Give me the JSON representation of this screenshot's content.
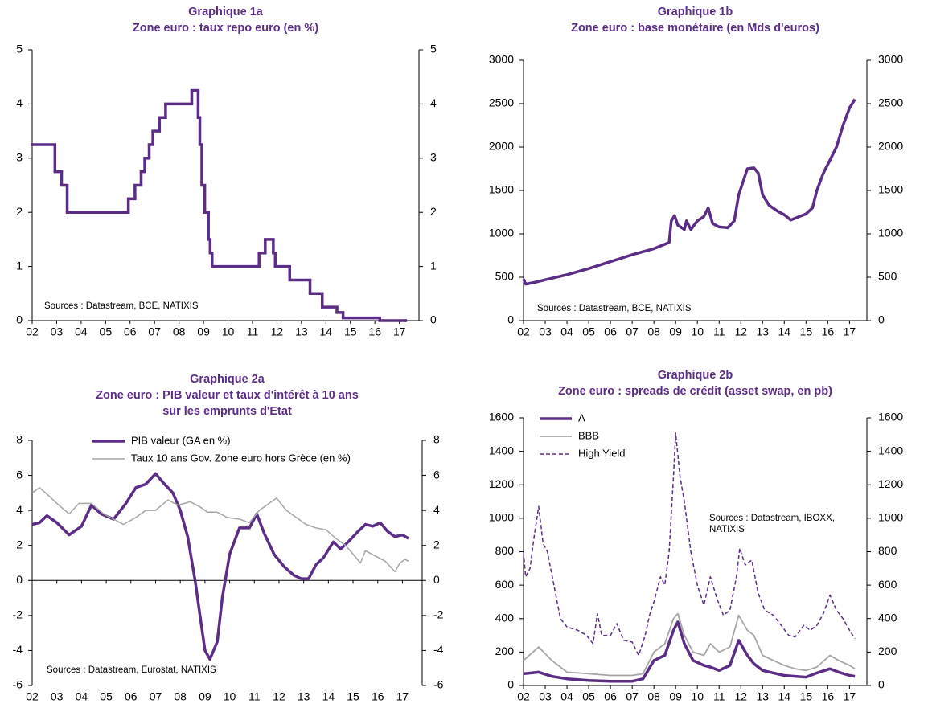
{
  "chart_data": [
    {
      "type": "line",
      "step": true,
      "title": "Graphique 1a",
      "subtitle": [
        "Zone euro : taux repo euro (en %)"
      ],
      "annotation": [
        "Sources : Datastream, BCE, NATIXIS"
      ],
      "color": "#5c2d86",
      "line_width": 3.5,
      "x": [
        2002.0,
        2002.93,
        2003.2,
        2003.43,
        2005.93,
        2006.2,
        2006.45,
        2006.6,
        2006.78,
        2006.93,
        2007.2,
        2007.45,
        2008.52,
        2008.78,
        2008.85,
        2008.93,
        2009.05,
        2009.2,
        2009.27,
        2009.35,
        2011.27,
        2011.52,
        2011.85,
        2011.93,
        2012.52,
        2013.35,
        2013.85,
        2014.45,
        2014.7,
        2016.2,
        2017.25
      ],
      "values": [
        3.25,
        2.75,
        2.5,
        2.0,
        2.25,
        2.5,
        2.75,
        3.0,
        3.25,
        3.5,
        3.75,
        4.0,
        4.25,
        3.75,
        3.25,
        2.5,
        2.0,
        1.5,
        1.25,
        1.0,
        1.25,
        1.5,
        1.25,
        1.0,
        0.75,
        0.5,
        0.25,
        0.15,
        0.05,
        0,
        0
      ],
      "xlim": [
        2002,
        2017.8
      ],
      "xticks": [
        {
          "value": 2002,
          "label": "02"
        },
        {
          "value": 2003,
          "label": "03"
        },
        {
          "value": 2004,
          "label": "04"
        },
        {
          "value": 2005,
          "label": "05"
        },
        {
          "value": 2006,
          "label": "06"
        },
        {
          "value": 2007,
          "label": "07"
        },
        {
          "value": 2008,
          "label": "08"
        },
        {
          "value": 2009,
          "label": "09"
        },
        {
          "value": 2010,
          "label": "10"
        },
        {
          "value": 2011,
          "label": "11"
        },
        {
          "value": 2012,
          "label": "12"
        },
        {
          "value": 2013,
          "label": "13"
        },
        {
          "value": 2014,
          "label": "14"
        },
        {
          "value": 2015,
          "label": "15"
        },
        {
          "value": 2016,
          "label": "16"
        },
        {
          "value": 2017,
          "label": "17"
        }
      ],
      "ylim": [
        0,
        5
      ],
      "yticks": [
        0,
        1,
        2,
        3,
        4,
        5
      ]
    },
    {
      "type": "line",
      "title": "Graphique 1b",
      "subtitle": [
        "Zone euro : base monétaire (en Mds d'euros)"
      ],
      "annotation": [
        "Sources : Datastream, BCE,  NATIXIS"
      ],
      "color": "#5c2d86",
      "line_width": 3.5,
      "x": [
        2002.0,
        2002.1,
        2002.5,
        2003.0,
        2004.0,
        2005.0,
        2006.0,
        2007.0,
        2008.0,
        2008.7,
        2008.8,
        2008.95,
        2009.1,
        2009.4,
        2009.5,
        2009.7,
        2010.0,
        2010.3,
        2010.5,
        2010.7,
        2011.0,
        2011.4,
        2011.7,
        2011.9,
        2012.1,
        2012.3,
        2012.6,
        2012.8,
        2013.0,
        2013.3,
        2013.7,
        2014.0,
        2014.3,
        2014.7,
        2015.0,
        2015.3,
        2015.5,
        2015.8,
        2016.1,
        2016.4,
        2016.7,
        2017.0,
        2017.25
      ],
      "values": [
        480,
        420,
        440,
        470,
        530,
        600,
        680,
        760,
        830,
        900,
        1150,
        1210,
        1100,
        1050,
        1150,
        1050,
        1150,
        1200,
        1300,
        1120,
        1080,
        1070,
        1150,
        1450,
        1600,
        1750,
        1760,
        1700,
        1450,
        1330,
        1260,
        1220,
        1160,
        1200,
        1230,
        1300,
        1500,
        1700,
        1850,
        2000,
        2250,
        2450,
        2550
      ],
      "xlim": [
        2002,
        2017.8
      ],
      "xticks": [
        {
          "value": 2002,
          "label": "02"
        },
        {
          "value": 2003,
          "label": "03"
        },
        {
          "value": 2004,
          "label": "04"
        },
        {
          "value": 2005,
          "label": "05"
        },
        {
          "value": 2006,
          "label": "06"
        },
        {
          "value": 2007,
          "label": "07"
        },
        {
          "value": 2008,
          "label": "08"
        },
        {
          "value": 2009,
          "label": "09"
        },
        {
          "value": 2010,
          "label": "10"
        },
        {
          "value": 2011,
          "label": "11"
        },
        {
          "value": 2012,
          "label": "12"
        },
        {
          "value": 2013,
          "label": "13"
        },
        {
          "value": 2014,
          "label": "14"
        },
        {
          "value": 2015,
          "label": "15"
        },
        {
          "value": 2016,
          "label": "16"
        },
        {
          "value": 2017,
          "label": "17"
        }
      ],
      "ylim": [
        0,
        3000
      ],
      "yticks": [
        0,
        500,
        1000,
        1500,
        2000,
        2500,
        3000
      ]
    },
    {
      "type": "line",
      "title": "Graphique 2a",
      "subtitle": [
        "Zone euro : PIB valeur et taux d'intérêt à 10 ans",
        "sur les emprunts d'Etat"
      ],
      "annotation": [
        "Sources : Datastream, Eurostat, NATIXIS"
      ],
      "legend": "upper center",
      "zero_line": true,
      "series": [
        {
          "name": "PIB valeur (GA en %)",
          "color": "#5c2d86",
          "line_width": 3.5,
          "x": [
            2002.0,
            2002.3,
            2002.6,
            2003.0,
            2003.5,
            2004.0,
            2004.4,
            2004.8,
            2005.3,
            2005.8,
            2006.2,
            2006.6,
            2007.0,
            2007.3,
            2007.7,
            2008.0,
            2008.3,
            2008.6,
            2008.8,
            2009.0,
            2009.2,
            2009.5,
            2009.7,
            2010.0,
            2010.4,
            2010.8,
            2011.1,
            2011.4,
            2011.8,
            2012.2,
            2012.6,
            2012.9,
            2013.2,
            2013.5,
            2013.8,
            2014.2,
            2014.5,
            2014.8,
            2015.2,
            2015.5,
            2015.8,
            2016.1,
            2016.4,
            2016.7,
            2017.0,
            2017.25
          ],
          "values": [
            3.2,
            3.3,
            3.7,
            3.3,
            2.6,
            3.1,
            4.3,
            3.8,
            3.5,
            4.4,
            5.3,
            5.5,
            6.1,
            5.6,
            5.0,
            4.0,
            2.5,
            0,
            -2,
            -4.0,
            -4.5,
            -3.5,
            -1.0,
            1.5,
            3.0,
            3.0,
            3.8,
            2.7,
            1.5,
            0.8,
            0.3,
            0.1,
            0.1,
            0.9,
            1.3,
            2.2,
            1.8,
            2.2,
            2.8,
            3.2,
            3.1,
            3.3,
            2.8,
            2.5,
            2.6,
            2.4
          ]
        },
        {
          "name": "Taux 10 ans Gov. Zone euro hors Grèce (en %)",
          "color": "#a6a6a6",
          "line_width": 1.5,
          "x": [
            2002.0,
            2002.3,
            2002.7,
            2003.0,
            2003.5,
            2003.9,
            2004.4,
            2004.9,
            2005.3,
            2005.7,
            2006.2,
            2006.6,
            2007.0,
            2007.5,
            2007.9,
            2008.4,
            2008.8,
            2009.1,
            2009.5,
            2009.9,
            2010.4,
            2010.8,
            2011.2,
            2011.6,
            2011.9,
            2012.3,
            2012.7,
            2013.1,
            2013.5,
            2013.9,
            2014.3,
            2014.7,
            2015.0,
            2015.3,
            2015.5,
            2015.9,
            2016.3,
            2016.7,
            2016.9,
            2017.1,
            2017.25
          ],
          "values": [
            5.0,
            5.3,
            4.8,
            4.4,
            3.8,
            4.4,
            4.4,
            3.8,
            3.5,
            3.2,
            3.6,
            4.0,
            4.0,
            4.6,
            4.3,
            4.5,
            4.2,
            3.9,
            3.9,
            3.6,
            3.5,
            3.3,
            4.0,
            4.4,
            4.7,
            4.0,
            3.6,
            3.2,
            3.0,
            2.9,
            2.4,
            2.0,
            1.5,
            1.0,
            1.7,
            1.4,
            1.1,
            0.5,
            1.0,
            1.2,
            1.1
          ]
        }
      ],
      "xlim": [
        2002,
        2017.8
      ],
      "xticks": [
        {
          "value": 2002,
          "label": "02"
        },
        {
          "value": 2003,
          "label": "03"
        },
        {
          "value": 2004,
          "label": "04"
        },
        {
          "value": 2005,
          "label": "05"
        },
        {
          "value": 2006,
          "label": "06"
        },
        {
          "value": 2007,
          "label": "07"
        },
        {
          "value": 2008,
          "label": "08"
        },
        {
          "value": 2009,
          "label": "09"
        },
        {
          "value": 2010,
          "label": "10"
        },
        {
          "value": 2011,
          "label": "11"
        },
        {
          "value": 2012,
          "label": "12"
        },
        {
          "value": 2013,
          "label": "13"
        },
        {
          "value": 2014,
          "label": "14"
        },
        {
          "value": 2015,
          "label": "15"
        },
        {
          "value": 2016,
          "label": "16"
        },
        {
          "value": 2017,
          "label": "17"
        }
      ],
      "ylim": [
        -6,
        8
      ],
      "yticks": [
        -6,
        -4,
        -2,
        0,
        2,
        4,
        6,
        8
      ]
    },
    {
      "type": "line",
      "title": "Graphique 2b",
      "subtitle": [
        "Zone euro : spreads de crédit (asset swap, en pb)"
      ],
      "annotation": [
        "Sources : Datastream, IBOXX,",
        "NATIXIS"
      ],
      "legend": "upper left",
      "series": [
        {
          "name": "A",
          "color": "#5c2d86",
          "line_width": 3.5,
          "x": [
            2002.0,
            2002.7,
            2003.3,
            2004.0,
            2005.0,
            2006.0,
            2007.0,
            2007.5,
            2008.0,
            2008.5,
            2008.9,
            2009.1,
            2009.4,
            2009.8,
            2010.3,
            2010.6,
            2011.0,
            2011.5,
            2011.9,
            2012.3,
            2012.6,
            2013.0,
            2013.5,
            2014.0,
            2014.5,
            2015.0,
            2015.5,
            2016.1,
            2016.5,
            2017.0,
            2017.25
          ],
          "values": [
            70,
            80,
            55,
            40,
            30,
            25,
            25,
            40,
            150,
            180,
            330,
            380,
            250,
            150,
            120,
            110,
            90,
            120,
            270,
            180,
            130,
            90,
            75,
            60,
            55,
            50,
            75,
            100,
            80,
            60,
            55
          ]
        },
        {
          "name": "BBB",
          "color": "#a6a6a6",
          "line_width": 1.8,
          "x": [
            2002.0,
            2002.7,
            2003.3,
            2004.0,
            2005.0,
            2006.0,
            2007.0,
            2007.5,
            2008.0,
            2008.5,
            2008.9,
            2009.1,
            2009.4,
            2009.8,
            2010.3,
            2010.6,
            2011.0,
            2011.5,
            2011.9,
            2012.3,
            2012.6,
            2013.0,
            2013.5,
            2014.0,
            2014.5,
            2015.0,
            2015.5,
            2016.1,
            2016.5,
            2017.0,
            2017.25
          ],
          "values": [
            150,
            230,
            150,
            80,
            70,
            60,
            60,
            70,
            200,
            250,
            400,
            430,
            300,
            200,
            180,
            250,
            200,
            230,
            420,
            330,
            300,
            180,
            150,
            120,
            100,
            90,
            110,
            180,
            150,
            120,
            100
          ]
        },
        {
          "name": "High Yield",
          "color": "#5c2d86",
          "line_width": 1.5,
          "dash": "dashed",
          "x": [
            2002.0,
            2002.1,
            2002.3,
            2002.5,
            2002.7,
            2002.9,
            2003.1,
            2003.4,
            2003.7,
            2004.0,
            2004.5,
            2004.9,
            2005.2,
            2005.4,
            2005.6,
            2006.0,
            2006.3,
            2006.6,
            2007.0,
            2007.3,
            2007.6,
            2007.8,
            2008.0,
            2008.3,
            2008.5,
            2008.7,
            2008.9,
            2009.0,
            2009.2,
            2009.4,
            2009.7,
            2010.0,
            2010.3,
            2010.6,
            2010.9,
            2011.2,
            2011.5,
            2011.8,
            2011.95,
            2012.2,
            2012.5,
            2012.8,
            2013.1,
            2013.5,
            2013.8,
            2014.2,
            2014.5,
            2014.9,
            2015.2,
            2015.5,
            2015.8,
            2016.1,
            2016.4,
            2016.7,
            2017.0,
            2017.25
          ],
          "values": [
            800,
            650,
            700,
            900,
            1070,
            850,
            800,
            600,
            400,
            350,
            330,
            300,
            250,
            430,
            300,
            300,
            370,
            270,
            260,
            180,
            300,
            420,
            500,
            650,
            600,
            800,
            1250,
            1510,
            1250,
            1100,
            800,
            600,
            480,
            650,
            520,
            420,
            450,
            650,
            820,
            720,
            750,
            550,
            450,
            420,
            370,
            300,
            290,
            360,
            330,
            360,
            430,
            540,
            450,
            400,
            330,
            280
          ]
        }
      ],
      "xlim": [
        2002,
        2017.8
      ],
      "xticks": [
        {
          "value": 2002,
          "label": "02"
        },
        {
          "value": 2003,
          "label": "03"
        },
        {
          "value": 2004,
          "label": "04"
        },
        {
          "value": 2005,
          "label": "05"
        },
        {
          "value": 2006,
          "label": "06"
        },
        {
          "value": 2007,
          "label": "07"
        },
        {
          "value": 2008,
          "label": "08"
        },
        {
          "value": 2009,
          "label": "09"
        },
        {
          "value": 2010,
          "label": "10"
        },
        {
          "value": 2011,
          "label": "11"
        },
        {
          "value": 2012,
          "label": "12"
        },
        {
          "value": 2013,
          "label": "13"
        },
        {
          "value": 2014,
          "label": "14"
        },
        {
          "value": 2015,
          "label": "15"
        },
        {
          "value": 2016,
          "label": "16"
        },
        {
          "value": 2017,
          "label": "17"
        }
      ],
      "ylim": [
        0,
        1600
      ],
      "yticks": [
        0,
        200,
        400,
        600,
        800,
        1000,
        1200,
        1400,
        1600
      ]
    }
  ]
}
